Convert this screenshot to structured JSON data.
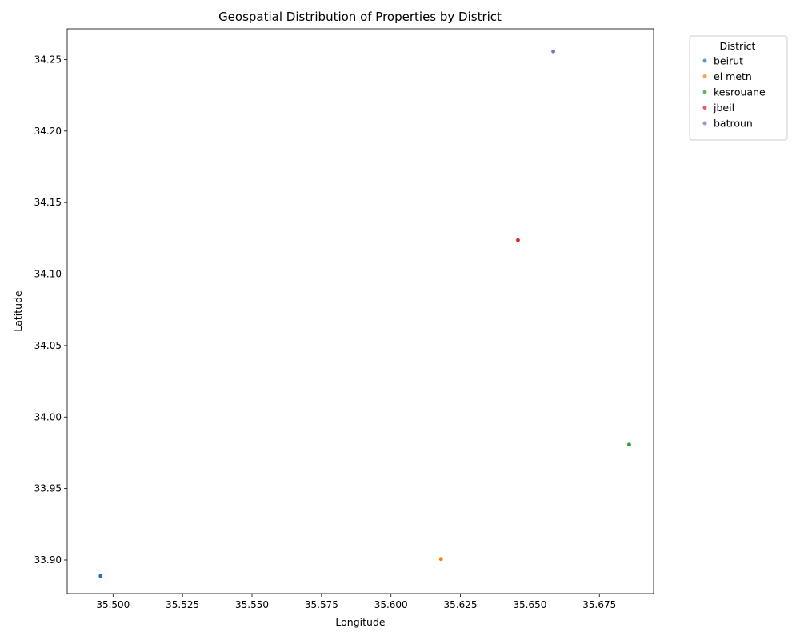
{
  "chart_data": {
    "type": "scatter",
    "title": "Geospatial Distribution of Properties by District",
    "xlabel": "Longitude",
    "ylabel": "Latitude",
    "xlim": [
      35.4835,
      35.6945
    ],
    "ylim": [
      33.8765,
      34.2715
    ],
    "x_ticks": [
      35.5,
      35.525,
      35.55,
      35.575,
      35.6,
      35.625,
      35.65,
      35.675
    ],
    "x_tick_labels": [
      "35.500",
      "35.525",
      "35.550",
      "35.575",
      "35.600",
      "35.625",
      "35.650",
      "35.675"
    ],
    "y_ticks": [
      33.9,
      33.95,
      34.0,
      34.05,
      34.1,
      34.15,
      34.2,
      34.25
    ],
    "y_tick_labels": [
      "33.90",
      "33.95",
      "34.00",
      "34.05",
      "34.10",
      "34.15",
      "34.20",
      "34.25"
    ],
    "grid": false,
    "legend": {
      "title": "District",
      "placement": "outside-upper-right"
    },
    "series": [
      {
        "name": "beirut",
        "color": "#1f77b4",
        "points": [
          {
            "x": 35.4955,
            "y": 33.8888
          }
        ]
      },
      {
        "name": "el metn",
        "color": "#ff7f0e",
        "points": [
          {
            "x": 35.618,
            "y": 33.9007
          }
        ]
      },
      {
        "name": "kesrouane",
        "color": "#2ca02c",
        "points": [
          {
            "x": 35.6857,
            "y": 33.9807
          }
        ]
      },
      {
        "name": "jbeil",
        "color": "#d62728",
        "points": [
          {
            "x": 35.6457,
            "y": 34.1237
          }
        ]
      },
      {
        "name": "batroun",
        "color": "#9467bd",
        "points": [
          {
            "x": 35.6584,
            "y": 34.2557
          }
        ]
      }
    ]
  }
}
